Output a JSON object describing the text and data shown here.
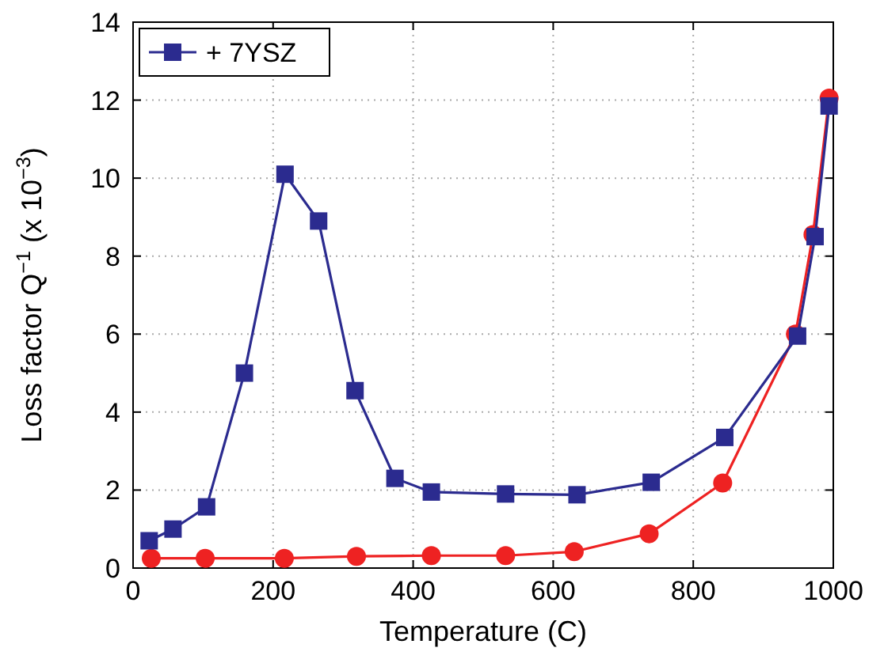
{
  "chart_data": {
    "type": "line",
    "xlabel": "Temperature (C)",
    "ylabel": "Loss factor Q$^{−1}$ (x 10$^{−3}$)",
    "xlim": [
      0,
      1000
    ],
    "ylim": [
      0,
      14
    ],
    "xticks": [
      0,
      200,
      400,
      600,
      800,
      1000
    ],
    "yticks": [
      0,
      2,
      4,
      6,
      8,
      10,
      12,
      14
    ],
    "grid": true,
    "legend": "top left",
    "series": [
      {
        "color": "#ee2222",
        "marker": "circle",
        "x": [
          26,
          103,
          216,
          319,
          426,
          532,
          630,
          737,
          842,
          946,
          971,
          994
        ],
        "values": [
          0.25,
          0.25,
          0.25,
          0.3,
          0.32,
          0.32,
          0.42,
          0.88,
          2.18,
          6.0,
          8.55,
          12.05
        ]
      },
      {
        "name": "+ 7YSZ",
        "color": "#2b2b8f",
        "marker": "square",
        "x": [
          23,
          57,
          105,
          159,
          217,
          265,
          317,
          374,
          426,
          532,
          634,
          740,
          845,
          949,
          974,
          994
        ],
        "values": [
          0.7,
          1.0,
          1.57,
          5.0,
          10.1,
          8.9,
          4.55,
          2.3,
          1.95,
          1.9,
          1.88,
          2.2,
          3.35,
          5.95,
          8.5,
          11.85
        ]
      }
    ]
  }
}
